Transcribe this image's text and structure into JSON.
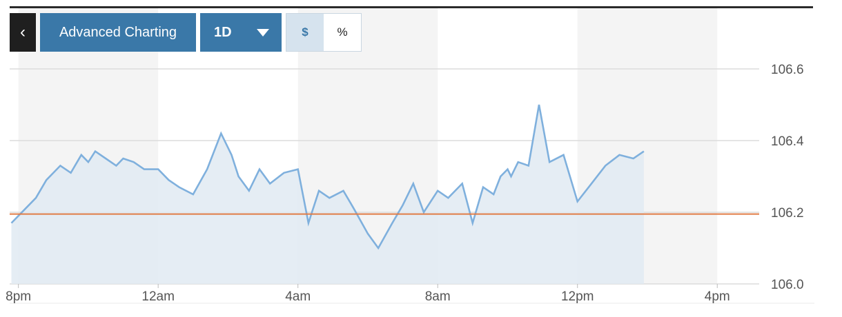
{
  "toolbar": {
    "back_label": "‹",
    "advanced_label": "Advanced Charting",
    "range_label": "1D",
    "dollar_label": "$",
    "percent_label": "%"
  },
  "colors": {
    "line": "#7fb0dd",
    "fill": "#e0eaf2",
    "baseline": "#e07b45",
    "band": "#f4f4f4",
    "button": "#3a78a8"
  },
  "chart_data": {
    "type": "area",
    "x_tick_labels": [
      "8pm",
      "12am",
      "4am",
      "8am",
      "12pm",
      "4pm"
    ],
    "y_tick_labels": [
      "106.0",
      "106.2",
      "106.4",
      "106.6"
    ],
    "ylim": [
      106.0,
      106.6
    ],
    "xlim": [
      -0.25,
      21.2
    ],
    "baseline_value": 106.195,
    "x_tick_hours": [
      0,
      4,
      8,
      12,
      16,
      20
    ],
    "series": [
      {
        "values_x_hours": [
          -0.2,
          0.0,
          0.2,
          0.5,
          0.8,
          1.2,
          1.5,
          1.8,
          2.0,
          2.2,
          2.5,
          2.8,
          3.0,
          3.3,
          3.6,
          4.0,
          4.3,
          4.6,
          5.0,
          5.4,
          5.8,
          6.1,
          6.3,
          6.6,
          6.9,
          7.2,
          7.6,
          8.0,
          8.3,
          8.6,
          8.9,
          9.3,
          9.6,
          10.0,
          10.3,
          10.7,
          11.0,
          11.3,
          11.6,
          12.0,
          12.3,
          12.7,
          13.0,
          13.3,
          13.6,
          13.8,
          14.0,
          14.1,
          14.3,
          14.6,
          14.9,
          15.2,
          15.6,
          16.0,
          16.4,
          16.8,
          17.2,
          17.6,
          17.9
        ],
        "values_y": [
          106.17,
          106.19,
          106.21,
          106.24,
          106.29,
          106.33,
          106.31,
          106.36,
          106.34,
          106.37,
          106.35,
          106.33,
          106.35,
          106.34,
          106.32,
          106.32,
          106.29,
          106.27,
          106.25,
          106.32,
          106.42,
          106.36,
          106.3,
          106.26,
          106.32,
          106.28,
          106.31,
          106.32,
          106.17,
          106.26,
          106.24,
          106.26,
          106.21,
          106.14,
          106.1,
          106.17,
          106.22,
          106.28,
          106.2,
          106.26,
          106.24,
          106.28,
          106.17,
          106.27,
          106.25,
          106.3,
          106.32,
          106.3,
          106.34,
          106.33,
          106.5,
          106.34,
          106.36,
          106.23,
          106.28,
          106.33,
          106.36,
          106.35,
          106.37
        ]
      }
    ]
  }
}
